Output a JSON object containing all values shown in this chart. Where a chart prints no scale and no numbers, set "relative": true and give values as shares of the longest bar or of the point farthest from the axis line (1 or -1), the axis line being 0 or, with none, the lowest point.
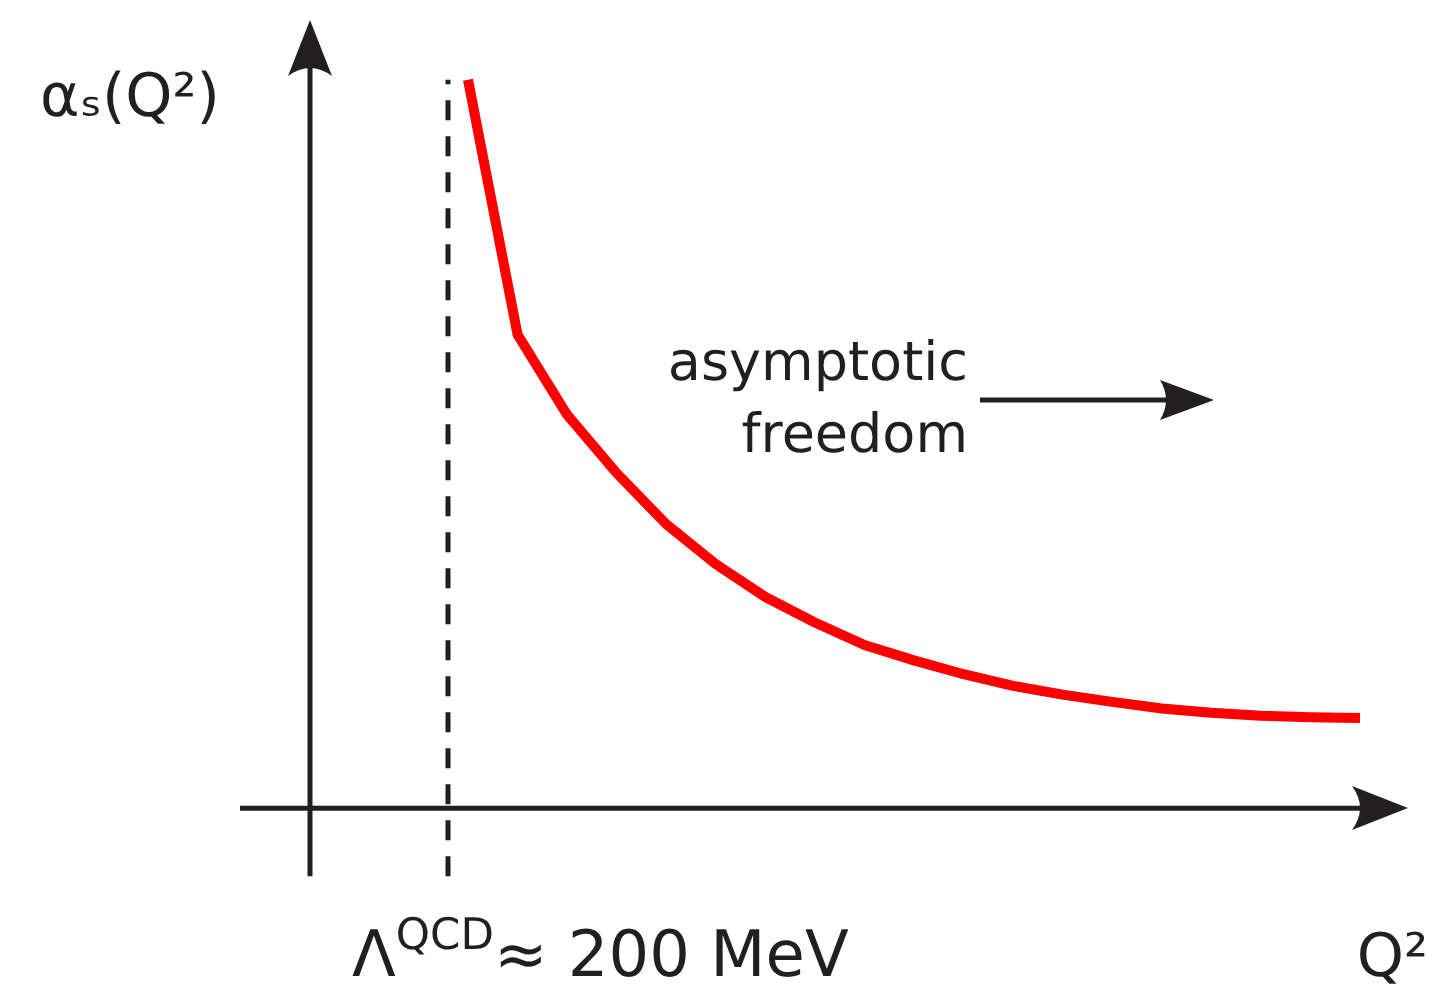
{
  "chart_data": {
    "type": "line",
    "relative": true,
    "xlabel": "Q²",
    "ylabel": "αₛ(Q²)",
    "categories": [
      null,
      null,
      null,
      null,
      null,
      null,
      null,
      null,
      null,
      null,
      null,
      null,
      null,
      null,
      null,
      null,
      null,
      null,
      null
    ],
    "marker": "none",
    "line_style": "solid",
    "series": [
      {
        "color": "#ff0000",
        "values": [
          1.0,
          0.65,
          0.54,
          0.46,
          0.39,
          0.335,
          0.29,
          0.255,
          0.224,
          0.203,
          0.184,
          0.168,
          0.156,
          0.146,
          0.137,
          0.131,
          0.127,
          0.125,
          0.124
        ]
      }
    ],
    "ref_lines": [
      {
        "axis": "x",
        "label": "Λ$^{QCD}$≈ 200 MeV",
        "color": "#231f20",
        "line_style": "dashed"
      }
    ],
    "annotations": [
      "asymptotic\nfreedom"
    ]
  }
}
